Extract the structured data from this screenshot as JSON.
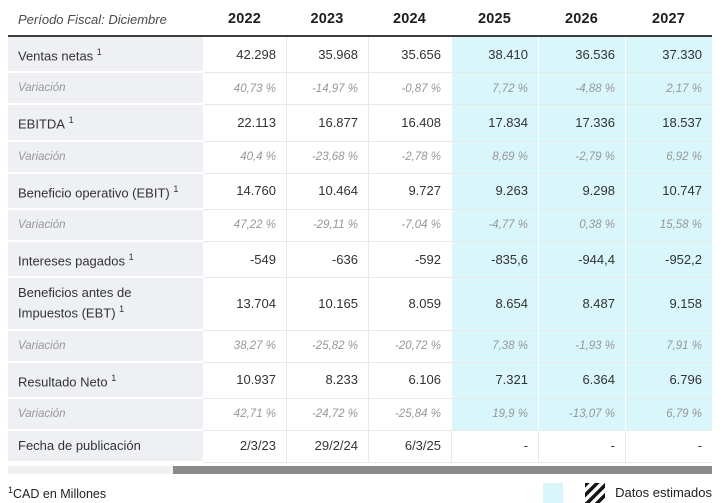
{
  "header": {
    "title": "Período Fiscal: Diciembre",
    "years": [
      "2022",
      "2023",
      "2024",
      "2025",
      "2026",
      "2027"
    ]
  },
  "columns": {
    "estimated_from_index": 3
  },
  "rows": [
    {
      "type": "metric",
      "label": "Ventas netas",
      "sup": "1",
      "values": [
        "42.298",
        "35.968",
        "35.656",
        "38.410",
        "36.536",
        "37.330"
      ]
    },
    {
      "type": "variation",
      "label": "Variación",
      "values": [
        "40,73 %",
        "-14,97 %",
        "-0,87 %",
        "7,72 %",
        "-4,88 %",
        "2,17 %"
      ]
    },
    {
      "type": "metric",
      "label": "EBITDA",
      "sup": "1",
      "values": [
        "22.113",
        "16.877",
        "16.408",
        "17.834",
        "17.336",
        "18.537"
      ]
    },
    {
      "type": "variation",
      "label": "Variación",
      "values": [
        "40,4 %",
        "-23,68 %",
        "-2,78 %",
        "8,69 %",
        "-2,79 %",
        "6,92 %"
      ]
    },
    {
      "type": "metric",
      "label": "Beneficio operativo (EBIT)",
      "sup": "1",
      "values": [
        "14.760",
        "10.464",
        "9.727",
        "9.263",
        "9.298",
        "10.747"
      ]
    },
    {
      "type": "variation",
      "label": "Variación",
      "values": [
        "47,22 %",
        "-29,11 %",
        "-7,04 %",
        "-4,77 %",
        "0,38 %",
        "15,58 %"
      ]
    },
    {
      "type": "metric",
      "label": "Intereses pagados",
      "sup": "1",
      "values": [
        "-549",
        "-636",
        "-592",
        "-835,6",
        "-944,4",
        "-952,2"
      ]
    },
    {
      "type": "metric",
      "label": "Beneficios antes de Impuestos (EBT)",
      "sup": "1",
      "values": [
        "13.704",
        "10.165",
        "8.059",
        "8.654",
        "8.487",
        "9.158"
      ]
    },
    {
      "type": "variation",
      "label": "Variación",
      "values": [
        "38,27 %",
        "-25,82 %",
        "-20,72 %",
        "7,38 %",
        "-1,93 %",
        "7,91 %"
      ]
    },
    {
      "type": "metric",
      "label": "Resultado Neto",
      "sup": "1",
      "values": [
        "10.937",
        "8.233",
        "6.106",
        "7.321",
        "6.364",
        "6.796"
      ]
    },
    {
      "type": "variation",
      "label": "Variación",
      "values": [
        "42,71 %",
        "-24,72 %",
        "-25,84 %",
        "19,9 %",
        "-13,07 %",
        "6,79 %"
      ]
    },
    {
      "type": "date",
      "label": "Fecha de publicación",
      "estimated_bg": false,
      "values": [
        "2/3/23",
        "29/2/24",
        "6/3/25",
        "-",
        "-",
        "-"
      ]
    }
  ],
  "footer": {
    "note_sup": "1",
    "note_text": "CAD en Millones",
    "legend_label": "Datos estimados"
  },
  "colors": {
    "estimated_bg": "#d9f6fb",
    "label_col_bg": "#eef0f4",
    "border": "#e8e8e8",
    "header_border": "#3c3c3c",
    "text": "#333333",
    "muted": "#979797",
    "scroll_thumb": "#8a8a8a",
    "scroll_track": "#f1f0ee"
  }
}
